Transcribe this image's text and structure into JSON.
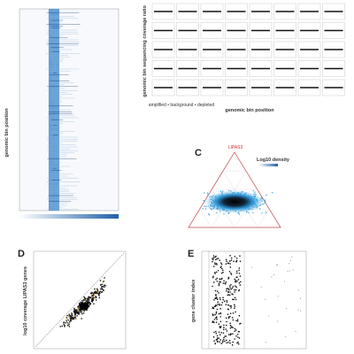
{
  "panels": {
    "a": {
      "y_label": "genomic bin position"
    },
    "b": {
      "y_label": "genomic bin sequencing coverage ratio",
      "x_label": "genomic bin position",
      "legend": "amplified • background • depleted"
    },
    "c": {
      "letter": "C",
      "legend_title": "Log10 density",
      "apex_label": "LIPAS3"
    },
    "d": {
      "letter": "D",
      "y_label": "log10 coverage LIPAS3 genes"
    },
    "e": {
      "letter": "E",
      "y_label": "gene cluster index"
    }
  }
}
